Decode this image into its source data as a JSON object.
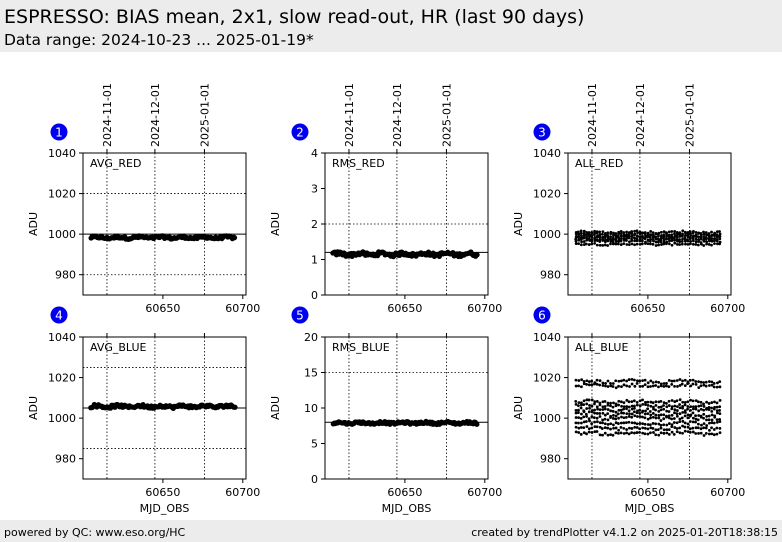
{
  "header": {
    "title": "ESPRESSO: BIAS mean, 2x1, slow read-out, HR (last 90 days)",
    "subtitle": "Data range: 2024-10-23 ... 2025-01-19*"
  },
  "footer": {
    "left": "powered by QC: www.eso.org/HC",
    "right": "created by trendPlotter v4.1.2 on 2025-01-20T18:38:15"
  },
  "colors": {
    "background": "#ffffff",
    "band": "#ececec",
    "marker_badge": "#0000ee",
    "data": "#000000"
  },
  "chart_data": [
    {
      "type": "scatter",
      "panel": "1",
      "label": "AVG_RED",
      "ylabel": "ADU",
      "xlim": [
        60600,
        60702
      ],
      "ylim": [
        970,
        1040
      ],
      "yticks": [
        980,
        1000,
        1020,
        1040
      ],
      "xticks": [
        60650,
        60700
      ],
      "xlabel": "",
      "date_ticks": [
        {
          "x": 60615,
          "label": "2024-11-01"
        },
        {
          "x": 60645,
          "label": "2024-12-01"
        },
        {
          "x": 60676,
          "label": "2025-01-01"
        }
      ],
      "ref_lines": [
        1000
      ],
      "dotted_lines": [
        980,
        1020
      ],
      "x_range": [
        60605,
        60695
      ],
      "y_level": 998.3,
      "y_spread": 0.6,
      "n_points": 120
    },
    {
      "type": "scatter",
      "panel": "2",
      "label": "RMS_RED",
      "ylabel": "ADU",
      "xlim": [
        60600,
        60702
      ],
      "ylim": [
        0,
        4
      ],
      "yticks": [
        0,
        1,
        2,
        3,
        4
      ],
      "xticks": [
        60650,
        60700
      ],
      "xlabel": "",
      "date_ticks": [
        {
          "x": 60615,
          "label": "2024-11-01"
        },
        {
          "x": 60645,
          "label": "2024-12-01"
        },
        {
          "x": 60676,
          "label": "2025-01-01"
        }
      ],
      "ref_lines": [
        1.2
      ],
      "dotted_lines": [
        2
      ],
      "x_range": [
        60605,
        60695
      ],
      "y_level": 1.15,
      "y_spread": 0.05,
      "n_points": 120
    },
    {
      "type": "scatter",
      "panel": "3",
      "label": "ALL_RED",
      "ylabel": "ADU",
      "xlim": [
        60600,
        60702
      ],
      "ylim": [
        970,
        1040
      ],
      "yticks": [
        980,
        1000,
        1020,
        1040
      ],
      "xticks": [
        60650,
        60700
      ],
      "xlabel": "",
      "date_ticks": [
        {
          "x": 60615,
          "label": "2024-11-01"
        },
        {
          "x": 60645,
          "label": "2024-12-01"
        },
        {
          "x": 60676,
          "label": "2025-01-01"
        }
      ],
      "ref_lines": [],
      "dotted_lines": [],
      "x_range": [
        60605,
        60695
      ],
      "multi_levels": [
        995,
        996.5,
        997.5,
        998.3,
        999,
        1000,
        1001
      ],
      "y_spread": 0.5,
      "n_points": 55
    },
    {
      "type": "scatter",
      "panel": "4",
      "label": "AVG_BLUE",
      "ylabel": "ADU",
      "xlim": [
        60600,
        60702
      ],
      "ylim": [
        970,
        1040
      ],
      "yticks": [
        980,
        1000,
        1020,
        1040
      ],
      "xticks": [
        60650,
        60700
      ],
      "xlabel": "MJD_OBS",
      "date_ticks": [
        {
          "x": 60615,
          "label": ""
        },
        {
          "x": 60645,
          "label": ""
        },
        {
          "x": 60676,
          "label": ""
        }
      ],
      "ref_lines": [
        1005
      ],
      "dotted_lines": [
        985,
        1025
      ],
      "x_range": [
        60605,
        60695
      ],
      "y_level": 1005.8,
      "y_spread": 0.7,
      "n_points": 120
    },
    {
      "type": "scatter",
      "panel": "5",
      "label": "RMS_BLUE",
      "ylabel": "ADU",
      "xlim": [
        60600,
        60702
      ],
      "ylim": [
        0,
        20
      ],
      "yticks": [
        0,
        5,
        10,
        15,
        20
      ],
      "xticks": [
        60650,
        60700
      ],
      "xlabel": "MJD_OBS",
      "date_ticks": [
        {
          "x": 60615,
          "label": ""
        },
        {
          "x": 60645,
          "label": ""
        },
        {
          "x": 60676,
          "label": ""
        }
      ],
      "ref_lines": [
        8
      ],
      "dotted_lines": [
        15
      ],
      "x_range": [
        60605,
        60695
      ],
      "y_level": 7.9,
      "y_spread": 0.15,
      "n_points": 120
    },
    {
      "type": "scatter",
      "panel": "6",
      "label": "ALL_BLUE",
      "ylabel": "ADU",
      "xlim": [
        60600,
        60702
      ],
      "ylim": [
        970,
        1040
      ],
      "yticks": [
        980,
        1000,
        1020,
        1040
      ],
      "xticks": [
        60650,
        60700
      ],
      "xlabel": "MJD_OBS",
      "date_ticks": [
        {
          "x": 60615,
          "label": ""
        },
        {
          "x": 60645,
          "label": ""
        },
        {
          "x": 60676,
          "label": ""
        }
      ],
      "ref_lines": [],
      "dotted_lines": [],
      "x_range": [
        60605,
        60695
      ],
      "multi_levels": [
        992.5,
        995,
        997.5,
        1000,
        1002,
        1004,
        1006,
        1008,
        1016,
        1018
      ],
      "y_spread": 0.8,
      "n_points": 55
    }
  ]
}
